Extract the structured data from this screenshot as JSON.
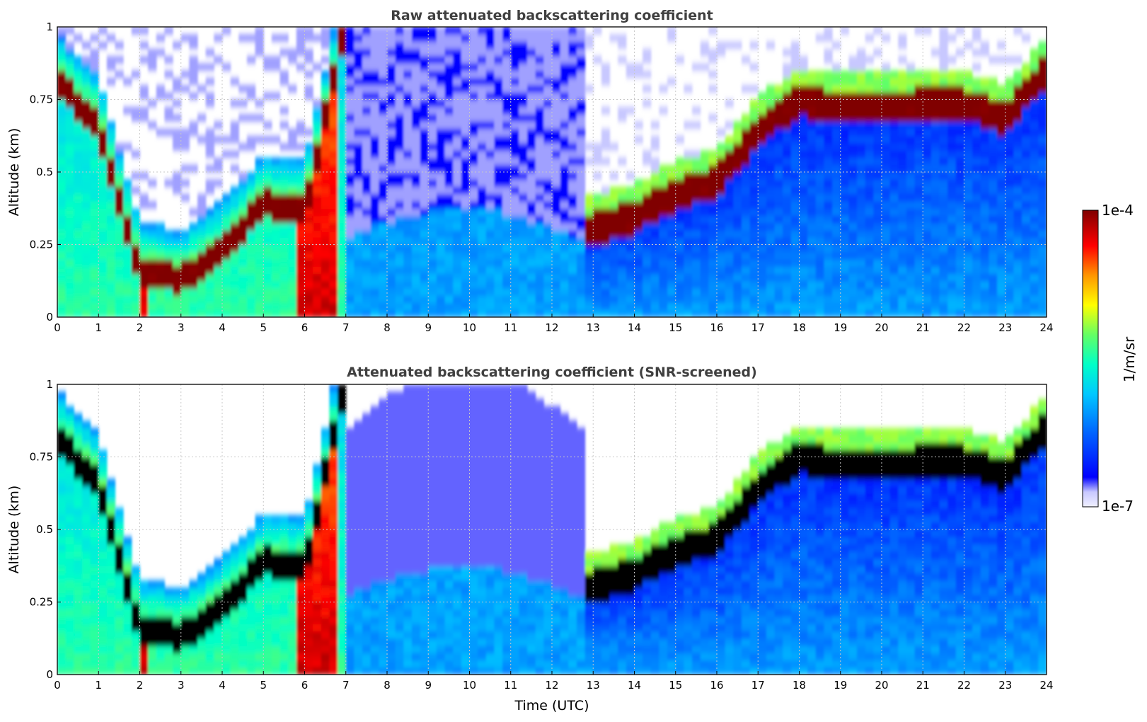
{
  "chart_data": [
    {
      "type": "heatmap",
      "title": "Raw attenuated backscattering coefficient",
      "xlabel": "",
      "ylabel": "Altitude (km)",
      "xlim": [
        0,
        24
      ],
      "ylim": [
        0,
        1
      ],
      "x_ticks": [
        "0",
        "1",
        "2",
        "3",
        "4",
        "5",
        "6",
        "7",
        "8",
        "9",
        "10",
        "11",
        "12",
        "13",
        "14",
        "15",
        "16",
        "17",
        "18",
        "19",
        "20",
        "21",
        "22",
        "23",
        "24"
      ],
      "y_ticks": [
        "0",
        "0.25",
        "0.5",
        "0.75",
        "1"
      ],
      "grid": true,
      "cloud_base_km": {
        "time_utc": [
          0,
          1,
          2,
          3,
          4,
          5,
          6,
          7,
          8,
          9,
          10,
          11,
          12,
          13,
          14,
          15,
          16,
          17,
          18,
          19,
          20,
          21,
          22,
          23,
          24
        ],
        "altitude_km": [
          0.8,
          0.65,
          0.15,
          0.12,
          0.22,
          0.38,
          0.36,
          1.0,
          null,
          null,
          null,
          null,
          null,
          0.3,
          0.34,
          0.42,
          0.46,
          0.64,
          0.74,
          0.72,
          0.72,
          0.73,
          0.73,
          0.68,
          0.85
        ]
      }
    },
    {
      "type": "heatmap",
      "title": "Attenuated backscattering coefficient (SNR-screened)",
      "xlabel": "Time (UTC)",
      "ylabel": "Altitude (km)",
      "xlim": [
        0,
        24
      ],
      "ylim": [
        0,
        1
      ],
      "x_ticks": [
        "0",
        "1",
        "2",
        "3",
        "4",
        "5",
        "6",
        "7",
        "8",
        "9",
        "10",
        "11",
        "12",
        "13",
        "14",
        "15",
        "16",
        "17",
        "18",
        "19",
        "20",
        "21",
        "22",
        "23",
        "24"
      ],
      "y_ticks": [
        "0",
        "0.25",
        "0.5",
        "0.75",
        "1"
      ],
      "grid": true
    }
  ],
  "colorbar": {
    "label": "1/m/sr",
    "max_label": "1e-4",
    "min_label": "1e-7",
    "scale": "log",
    "range": [
      1e-07,
      0.0001
    ]
  },
  "colors": {
    "colormap_stops": [
      "#f0f0ff",
      "#c8c8ff",
      "#0000ff",
      "#0064ff",
      "#00c8ff",
      "#00ffc8",
      "#64ff64",
      "#ffff00",
      "#ff9600",
      "#ff0000",
      "#800000"
    ],
    "saturated_screened": "#000000"
  }
}
